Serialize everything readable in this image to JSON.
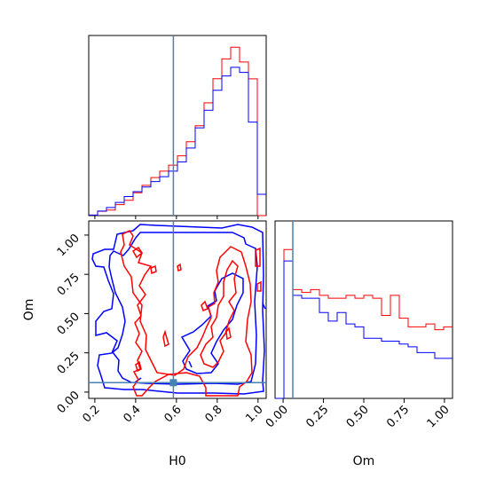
{
  "chart_data": [
    {
      "type": "histogram",
      "panel": "H0 marginal",
      "x_range": [
        0.17,
        1.04
      ],
      "y_ticks_shown": false,
      "truth_line": 0.585,
      "bin_edges": [
        0.17,
        0.2135,
        0.257,
        0.3005,
        0.344,
        0.3875,
        0.431,
        0.4745,
        0.518,
        0.5615,
        0.605,
        0.6485,
        0.692,
        0.7355,
        0.779,
        0.8225,
        0.866,
        0.9095,
        0.953,
        0.9965,
        1.04
      ],
      "series": [
        {
          "color": "#ff0000",
          "counts": [
            0.3,
            2.4,
            3.1,
            6.1,
            8.5,
            12.7,
            16.8,
            21.1,
            24.7,
            28.0,
            33.2,
            41.0,
            49.9,
            62.6,
            76.0,
            87.0,
            93.5,
            85.3,
            75.9,
            0
          ]
        },
        {
          "color": "#0000ff",
          "counts": [
            0.3,
            2.5,
            4.5,
            7.3,
            10.6,
            13.3,
            15.9,
            18.9,
            21.6,
            24.7,
            29.8,
            37.5,
            48.7,
            58.5,
            69.6,
            77.5,
            82.3,
            79.5,
            51.9,
            11.8
          ]
        }
      ]
    },
    {
      "type": "histogram",
      "panel": "Om marginal",
      "x_range": [
        -0.05,
        1.05
      ],
      "x_ticks": [
        "0.00",
        "0.25",
        "0.50",
        "0.75",
        "1.00"
      ],
      "truth_line": 0.06,
      "bin_edges": [
        -0.05,
        0.005,
        0.06,
        0.115,
        0.17,
        0.225,
        0.28,
        0.335,
        0.39,
        0.445,
        0.5,
        0.555,
        0.61,
        0.665,
        0.72,
        0.775,
        0.83,
        0.885,
        0.94,
        0.995,
        1.05
      ],
      "series": [
        {
          "color": "#ff0000",
          "counts": [
            0,
            52,
            38,
            37,
            38,
            36,
            35,
            35,
            36,
            35,
            36,
            35,
            29,
            36,
            28,
            25,
            25,
            26,
            24,
            25
          ]
        },
        {
          "color": "#0000ff",
          "counts": [
            0,
            48,
            36,
            35,
            35,
            30,
            27,
            30,
            26,
            25,
            21,
            21,
            20,
            20,
            19,
            18,
            16,
            16,
            14,
            14
          ]
        }
      ]
    },
    {
      "type": "contour",
      "panel": "Om vs H0",
      "xlabel": "H0",
      "ylabel": "Om",
      "x_range": [
        0.17,
        1.04
      ],
      "y_range": [
        -0.04,
        1.09
      ],
      "x_ticks": [
        "0.2",
        "0.4",
        "0.6",
        "0.8",
        "1.0"
      ],
      "y_ticks": [
        "0.00",
        "0.25",
        "0.50",
        "0.75",
        "1.00"
      ],
      "truth_point": [
        0.585,
        0.06
      ],
      "series": [
        {
          "color": "#0000ff",
          "note": "outer and inner density contour levels (traced)"
        },
        {
          "color": "#ff0000",
          "note": "outer and inner density contour levels (traced)"
        }
      ]
    }
  ],
  "colors": {
    "axes": "#000000",
    "truth": "#4682b4",
    "series_a": "#ff0000",
    "series_b": "#0000ff"
  }
}
